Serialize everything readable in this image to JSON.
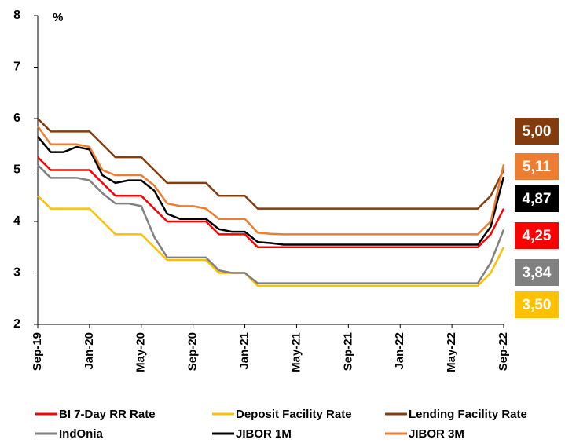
{
  "chart_data": {
    "type": "line",
    "y_label": "%",
    "categories": [
      "Sep-19",
      null,
      null,
      null,
      "Jan-20",
      null,
      null,
      null,
      "May-20",
      null,
      null,
      null,
      "Sep-20",
      null,
      null,
      null,
      "Jan-21",
      null,
      null,
      null,
      "May-21",
      null,
      null,
      null,
      "Sep-21",
      null,
      null,
      null,
      "Jan-22",
      null,
      null,
      null,
      "May-22",
      null,
      null,
      null,
      "Sep-22"
    ],
    "ylim": [
      2,
      8
    ],
    "yticks": [
      2,
      3,
      4,
      5,
      6,
      7,
      8
    ],
    "grid": false,
    "series": [
      {
        "name": "BI 7-Day RR Rate",
        "color": "#ff0000",
        "values": [
          5.25,
          5,
          5,
          5,
          5,
          4.75,
          4.5,
          4.5,
          4.5,
          4.25,
          4,
          4,
          4,
          4,
          3.75,
          3.75,
          3.75,
          3.5,
          3.5,
          3.5,
          3.5,
          3.5,
          3.5,
          3.5,
          3.5,
          3.5,
          3.5,
          3.5,
          3.5,
          3.5,
          3.5,
          3.5,
          3.5,
          3.5,
          3.5,
          3.75,
          4.25
        ],
        "value_labels": [
          null,
          null,
          null,
          null,
          null,
          null,
          null,
          null,
          null,
          null,
          null,
          null,
          null,
          null,
          null,
          null,
          null,
          null,
          null,
          null,
          null,
          null,
          null,
          null,
          null,
          null,
          null,
          null,
          null,
          null,
          null,
          null,
          null,
          null,
          null,
          null,
          "4,25"
        ]
      },
      {
        "name": "Deposit Facility Rate",
        "color": "#ffc000",
        "values": [
          4.5,
          4.25,
          4.25,
          4.25,
          4.25,
          4,
          3.75,
          3.75,
          3.75,
          3.5,
          3.25,
          3.25,
          3.25,
          3.25,
          3,
          3,
          3,
          2.75,
          2.75,
          2.75,
          2.75,
          2.75,
          2.75,
          2.75,
          2.75,
          2.75,
          2.75,
          2.75,
          2.75,
          2.75,
          2.75,
          2.75,
          2.75,
          2.75,
          2.75,
          3,
          3.5
        ],
        "value_labels": [
          null,
          null,
          null,
          null,
          null,
          null,
          null,
          null,
          null,
          null,
          null,
          null,
          null,
          null,
          null,
          null,
          null,
          null,
          null,
          null,
          null,
          null,
          null,
          null,
          null,
          null,
          null,
          null,
          null,
          null,
          null,
          null,
          null,
          null,
          null,
          null,
          "3,50"
        ]
      },
      {
        "name": "Lending Facility Rate",
        "color": "#843c0c",
        "values": [
          6,
          5.75,
          5.75,
          5.75,
          5.75,
          5.5,
          5.25,
          5.25,
          5.25,
          5,
          4.75,
          4.75,
          4.75,
          4.75,
          4.5,
          4.5,
          4.5,
          4.25,
          4.25,
          4.25,
          4.25,
          4.25,
          4.25,
          4.25,
          4.25,
          4.25,
          4.25,
          4.25,
          4.25,
          4.25,
          4.25,
          4.25,
          4.25,
          4.25,
          4.25,
          4.5,
          5
        ],
        "value_labels": [
          null,
          null,
          null,
          null,
          null,
          null,
          null,
          null,
          null,
          null,
          null,
          null,
          null,
          null,
          null,
          null,
          null,
          null,
          null,
          null,
          null,
          null,
          null,
          null,
          null,
          null,
          null,
          null,
          null,
          null,
          null,
          null,
          null,
          null,
          null,
          null,
          "5,00"
        ]
      },
      {
        "name": "IndOnia",
        "color": "#808080",
        "values": [
          5.1,
          4.85,
          4.85,
          4.85,
          4.8,
          4.55,
          4.35,
          4.35,
          4.3,
          3.7,
          3.3,
          3.3,
          3.3,
          3.3,
          3.05,
          3,
          3,
          2.8,
          2.8,
          2.8,
          2.8,
          2.8,
          2.8,
          2.8,
          2.8,
          2.8,
          2.8,
          2.8,
          2.8,
          2.8,
          2.8,
          2.8,
          2.8,
          2.8,
          2.8,
          3.2,
          3.84
        ],
        "value_labels": [
          null,
          null,
          null,
          null,
          null,
          null,
          null,
          null,
          null,
          null,
          null,
          null,
          null,
          null,
          null,
          null,
          null,
          null,
          null,
          null,
          null,
          null,
          null,
          null,
          null,
          null,
          null,
          null,
          null,
          null,
          null,
          null,
          null,
          null,
          null,
          null,
          "3,84"
        ]
      },
      {
        "name": "JIBOR 1M",
        "color": "#000000",
        "values": [
          5.65,
          5.35,
          5.35,
          5.45,
          5.4,
          4.9,
          4.75,
          4.8,
          4.8,
          4.6,
          4.15,
          4.05,
          4.05,
          4.05,
          3.85,
          3.8,
          3.8,
          3.6,
          3.58,
          3.55,
          3.55,
          3.55,
          3.55,
          3.55,
          3.55,
          3.55,
          3.55,
          3.55,
          3.55,
          3.55,
          3.55,
          3.55,
          3.55,
          3.55,
          3.55,
          3.9,
          4.87
        ],
        "value_labels": [
          null,
          null,
          null,
          null,
          null,
          null,
          null,
          null,
          null,
          null,
          null,
          null,
          null,
          null,
          null,
          null,
          null,
          null,
          null,
          null,
          null,
          null,
          null,
          null,
          null,
          null,
          null,
          null,
          null,
          null,
          null,
          null,
          null,
          null,
          null,
          null,
          "4,87"
        ]
      },
      {
        "name": "JIBOR 3M",
        "color": "#ed7d31",
        "values": [
          5.85,
          5.5,
          5.5,
          5.5,
          5.45,
          5,
          4.9,
          4.9,
          4.9,
          4.7,
          4.35,
          4.3,
          4.3,
          4.25,
          4.05,
          4.05,
          4.05,
          3.78,
          3.76,
          3.75,
          3.75,
          3.75,
          3.75,
          3.75,
          3.75,
          3.75,
          3.75,
          3.75,
          3.75,
          3.75,
          3.75,
          3.75,
          3.75,
          3.75,
          3.75,
          4,
          5.11
        ],
        "value_labels": [
          null,
          null,
          null,
          null,
          null,
          null,
          null,
          null,
          null,
          null,
          null,
          null,
          null,
          null,
          null,
          null,
          null,
          null,
          null,
          null,
          null,
          null,
          null,
          null,
          null,
          null,
          null,
          null,
          null,
          null,
          null,
          null,
          null,
          null,
          null,
          null,
          "5,11"
        ]
      }
    ]
  }
}
